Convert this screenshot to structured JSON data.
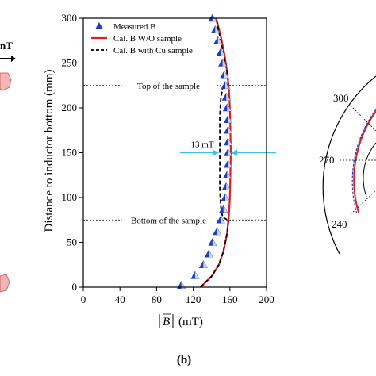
{
  "chart_data": {
    "type": "line",
    "panel_label": "(b)",
    "xlabel_symbol": "B",
    "xlabel_unit": "(mT)",
    "ylabel": "Distance to inductor bottom (mm)",
    "xlim": [
      0,
      200
    ],
    "ylim": [
      0,
      300
    ],
    "xticks": [
      0,
      40,
      80,
      120,
      160,
      200
    ],
    "yticks": [
      0,
      50,
      100,
      150,
      200,
      250,
      300
    ],
    "legend": {
      "placement": "top-left",
      "entries": [
        "Measured B",
        "Cal. B W/O sample",
        "Cal. B with Cu sample"
      ]
    },
    "series": [
      {
        "name": "Measured B",
        "style": "triangle-markers",
        "color": "#1f3fbf",
        "points": [
          [
            107,
            2
          ],
          [
            122,
            13
          ],
          [
            131,
            25
          ],
          [
            137,
            37
          ],
          [
            141,
            50
          ],
          [
            146,
            62
          ],
          [
            150,
            75
          ],
          [
            153,
            87
          ],
          [
            155,
            100
          ],
          [
            156,
            112
          ],
          [
            157,
            125
          ],
          [
            158,
            137
          ],
          [
            158,
            150
          ],
          [
            158,
            162
          ],
          [
            158,
            175
          ],
          [
            158,
            187
          ],
          [
            157,
            200
          ],
          [
            156,
            212
          ],
          [
            155,
            225
          ],
          [
            154,
            237
          ],
          [
            152,
            250
          ],
          [
            150,
            262
          ],
          [
            147,
            275
          ],
          [
            144,
            287
          ],
          [
            141,
            300
          ]
        ]
      },
      {
        "name": "Cal. B W/O sample",
        "style": "solid",
        "color": "#e02020",
        "points": [
          [
            128,
            0
          ],
          [
            140,
            12
          ],
          [
            148,
            25
          ],
          [
            153,
            40
          ],
          [
            157,
            60
          ],
          [
            159,
            80
          ],
          [
            160,
            100
          ],
          [
            161,
            150
          ],
          [
            160,
            200
          ],
          [
            159,
            220
          ],
          [
            157,
            240
          ],
          [
            154,
            260
          ],
          [
            150,
            280
          ],
          [
            145,
            300
          ]
        ]
      },
      {
        "name": "Cal. B with Cu sample",
        "style": "dashed",
        "color": "#000000",
        "points": [
          [
            128,
            0
          ],
          [
            140,
            12
          ],
          [
            148,
            25
          ],
          [
            153,
            40
          ],
          [
            156,
            55
          ],
          [
            158,
            68
          ],
          [
            158,
            75
          ],
          [
            152,
            78
          ],
          [
            150,
            90
          ],
          [
            149,
            110
          ],
          [
            149,
            150
          ],
          [
            149,
            190
          ],
          [
            150,
            210
          ],
          [
            152,
            222
          ],
          [
            158,
            225
          ],
          [
            158,
            232
          ],
          [
            156,
            245
          ],
          [
            153,
            260
          ],
          [
            149,
            280
          ],
          [
            145,
            300
          ]
        ]
      }
    ],
    "reference_lines": [
      {
        "y": 225,
        "label": "Top of the sample"
      },
      {
        "y": 75,
        "label": "Bottom of the sample"
      }
    ],
    "annotation": {
      "label": "13 mT",
      "y": 150,
      "x_from": 148,
      "x_to": 161,
      "color": "#33c3e6"
    },
    "side_fragments": {
      "left_label": "nT",
      "right_polar_ticks": [
        "300",
        "270",
        "240"
      ]
    }
  }
}
